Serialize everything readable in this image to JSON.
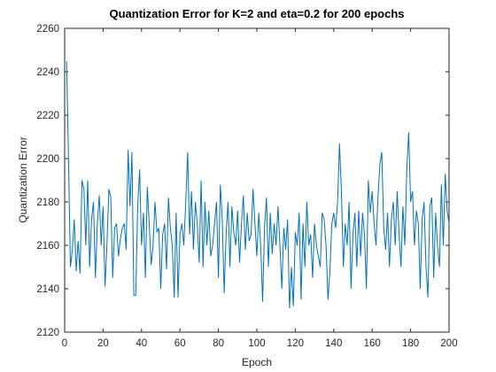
{
  "chart_data": {
    "type": "line",
    "title": "Quantization Error for K=2 and eta=0.2 for 200 epochs",
    "x_label": "Epoch",
    "y_label": "Quantization Error",
    "x": [
      1,
      2,
      3,
      4,
      5,
      6,
      7,
      8,
      9,
      10,
      11,
      12,
      13,
      14,
      15,
      16,
      17,
      18,
      19,
      20,
      21,
      22,
      23,
      24,
      25,
      26,
      27,
      28,
      29,
      30,
      31,
      32,
      33,
      34,
      35,
      36,
      37,
      38,
      39,
      40,
      41,
      42,
      43,
      44,
      45,
      46,
      47,
      48,
      49,
      50,
      51,
      52,
      53,
      54,
      55,
      56,
      57,
      58,
      59,
      60,
      61,
      62,
      63,
      64,
      65,
      66,
      67,
      68,
      69,
      70,
      71,
      72,
      73,
      74,
      75,
      76,
      77,
      78,
      79,
      80,
      81,
      82,
      83,
      84,
      85,
      86,
      87,
      88,
      89,
      90,
      91,
      92,
      93,
      94,
      95,
      96,
      97,
      98,
      99,
      100,
      101,
      102,
      103,
      104,
      105,
      106,
      107,
      108,
      109,
      110,
      111,
      112,
      113,
      114,
      115,
      116,
      117,
      118,
      119,
      120,
      121,
      122,
      123,
      124,
      125,
      126,
      127,
      128,
      129,
      130,
      131,
      132,
      133,
      134,
      135,
      136,
      137,
      138,
      139,
      140,
      141,
      142,
      143,
      144,
      145,
      146,
      147,
      148,
      149,
      150,
      151,
      152,
      153,
      154,
      155,
      156,
      157,
      158,
      159,
      160,
      161,
      162,
      163,
      164,
      165,
      166,
      167,
      168,
      169,
      170,
      171,
      172,
      173,
      174,
      175,
      176,
      177,
      178,
      179,
      180,
      181,
      182,
      183,
      184,
      185,
      186,
      187,
      188,
      189,
      190,
      191,
      192,
      193,
      194,
      195,
      196,
      197,
      198,
      199,
      200
    ],
    "series": [
      {
        "name": "Quantization Error",
        "color": "#0072bd",
        "values": [
          2245,
          2200,
          2150,
          2158,
          2172,
          2148,
          2162,
          2147,
          2190,
          2186,
          2160,
          2190,
          2150,
          2172,
          2180,
          2145,
          2170,
          2183,
          2160,
          2178,
          2141,
          2160,
          2186,
          2182,
          2145,
          2168,
          2170,
          2155,
          2163,
          2168,
          2170,
          2158,
          2204,
          2178,
          2203,
          2137,
          2137,
          2178,
          2195,
          2160,
          2175,
          2145,
          2187,
          2170,
          2151,
          2160,
          2180,
          2166,
          2168,
          2140,
          2165,
          2170,
          2149,
          2182,
          2168,
          2160,
          2136,
          2175,
          2136,
          2165,
          2170,
          2160,
          2180,
          2203,
          2165,
          2185,
          2158,
          2180,
          2170,
          2152,
          2190,
          2150,
          2180,
          2160,
          2176,
          2155,
          2160,
          2170,
          2180,
          2145,
          2188,
          2172,
          2138,
          2165,
          2180,
          2150,
          2178,
          2166,
          2160,
          2176,
          2152,
          2170,
          2183,
          2158,
          2175,
          2162,
          2165,
          2186,
          2170,
          2155,
          2175,
          2160,
          2134,
          2168,
          2182,
          2150,
          2175,
          2156,
          2170,
          2160,
          2178,
          2160,
          2140,
          2168,
          2158,
          2172,
          2131,
          2150,
          2132,
          2166,
          2160,
          2175,
          2135,
          2170,
          2150,
          2180,
          2160,
          2165,
          2145,
          2170,
          2160,
          2155,
          2150,
          2175,
          2172,
          2160,
          2135,
          2148,
          2170,
          2175,
          2168,
          2180,
          2207,
          2185,
          2150,
          2170,
          2160,
          2180,
          2140,
          2165,
          2175,
          2150,
          2176,
          2155,
          2175,
          2165,
          2140,
          2190,
          2175,
          2185,
          2170,
          2160,
          2182,
          2197,
          2203,
          2168,
          2158,
          2175,
          2150,
          2172,
          2180,
          2160,
          2185,
          2165,
          2150,
          2178,
          2160,
          2195,
          2212,
          2180,
          2185,
          2160,
          2176,
          2170,
          2140,
          2172,
          2180,
          2150,
          2136,
          2178,
          2182,
          2145,
          2175,
          2160,
          2150,
          2188,
          2160,
          2193,
          2176,
          2170
        ]
      }
    ],
    "xlim": [
      0,
      200
    ],
    "xticks": [
      0,
      20,
      40,
      60,
      80,
      100,
      120,
      140,
      160,
      180,
      200
    ],
    "ylim": [
      2120,
      2260
    ],
    "yticks": [
      2120,
      2140,
      2160,
      2180,
      2200,
      2220,
      2240,
      2260
    ],
    "grid": false
  }
}
